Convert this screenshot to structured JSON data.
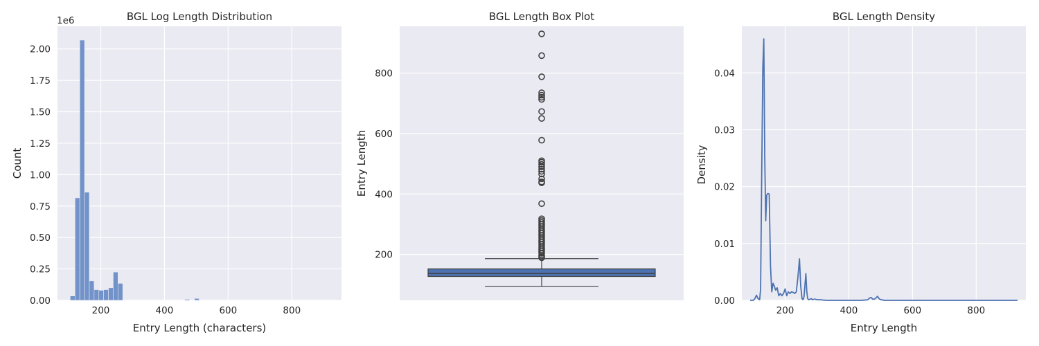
{
  "colors": {
    "background": "#eaeaf2",
    "bar": "#7293c9",
    "box": "#4c72b0",
    "line": "#4c72b0",
    "edge": "#3f3f3f",
    "grid": "#ffffff"
  },
  "chart_data": [
    {
      "type": "bar",
      "title": "BGL Log Length Distribution",
      "xlabel": "Entry Length (characters)",
      "ylabel": "Count",
      "y_offset_label": "1e6",
      "xlim": [
        64,
        956
      ],
      "ylim": [
        0,
        2.18
      ],
      "xticks": [
        200,
        400,
        600,
        800
      ],
      "xtick_labels": [
        "200",
        "400",
        "600",
        "800"
      ],
      "yticks": [
        0,
        0.25,
        0.5,
        0.75,
        1.0,
        1.25,
        1.5,
        1.75,
        2.0
      ],
      "ytick_labels": [
        "0.00",
        "0.25",
        "0.50",
        "0.75",
        "1.00",
        "1.25",
        "1.50",
        "1.75",
        "2.00"
      ],
      "bins": [
        {
          "x0": 104,
          "x1": 119,
          "count": 0.035
        },
        {
          "x0": 119,
          "x1": 134,
          "count": 0.815
        },
        {
          "x0": 134,
          "x1": 149,
          "count": 2.07
        },
        {
          "x0": 149,
          "x1": 164,
          "count": 0.86
        },
        {
          "x0": 164,
          "x1": 179,
          "count": 0.155
        },
        {
          "x0": 179,
          "x1": 194,
          "count": 0.085
        },
        {
          "x0": 194,
          "x1": 209,
          "count": 0.08
        },
        {
          "x0": 209,
          "x1": 224,
          "count": 0.085
        },
        {
          "x0": 224,
          "x1": 239,
          "count": 0.1
        },
        {
          "x0": 239,
          "x1": 254,
          "count": 0.225
        },
        {
          "x0": 254,
          "x1": 269,
          "count": 0.135
        },
        {
          "x0": 464,
          "x1": 479,
          "count": 0.008
        },
        {
          "x0": 494,
          "x1": 509,
          "count": 0.015
        }
      ]
    },
    {
      "type": "box",
      "title": "BGL Length Box Plot",
      "xlabel": "",
      "ylabel": "Entry Length",
      "ylim": [
        48,
        955
      ],
      "yticks": [
        200,
        400,
        600,
        800
      ],
      "ytick_labels": [
        "200",
        "400",
        "600",
        "800"
      ],
      "box": {
        "q1": 127,
        "median": 137,
        "q3": 152,
        "whisker_low": 94,
        "whisker_high": 186
      },
      "outliers": [
        930,
        858,
        788,
        735,
        727,
        720,
        713,
        673,
        650,
        578,
        510,
        505,
        498,
        490,
        482,
        475,
        466,
        450,
        440,
        437,
        368,
        318,
        312,
        306,
        300,
        294,
        288,
        282,
        276,
        270,
        264,
        258,
        252,
        246,
        240,
        234,
        228,
        222,
        216,
        210,
        204,
        198,
        193,
        189
      ]
    },
    {
      "type": "line",
      "title": "BGL Length Density",
      "xlabel": "Entry Length",
      "ylabel": "Density",
      "xlim": [
        64,
        956
      ],
      "ylim": [
        0,
        0.0482
      ],
      "xticks": [
        200,
        400,
        600,
        800
      ],
      "xtick_labels": [
        "200",
        "400",
        "600",
        "800"
      ],
      "yticks": [
        0,
        0.01,
        0.02,
        0.03,
        0.04
      ],
      "ytick_labels": [
        "0.00",
        "0.01",
        "0.02",
        "0.03",
        "0.04"
      ],
      "series": [
        {
          "x": [
            90,
            100,
            105,
            110,
            115,
            120,
            123,
            126,
            130,
            133,
            136,
            139,
            142,
            146,
            150,
            154,
            158,
            162,
            166,
            170,
            175,
            180,
            185,
            190,
            195,
            200,
            205,
            210,
            215,
            220,
            225,
            230,
            235,
            240,
            245,
            249,
            253,
            256,
            259,
            262,
            265,
            268,
            271,
            274,
            278,
            282,
            286,
            290,
            295,
            300,
            310,
            320,
            330,
            400,
            440,
            460,
            465,
            470,
            475,
            480,
            485,
            490,
            495,
            500,
            505,
            510,
            520,
            600,
            700,
            800,
            900,
            930
          ],
          "y": [
            0,
            0,
            0.0003,
            0.0009,
            0.0003,
            0.0001,
            0.002,
            0.02,
            0.041,
            0.046,
            0.025,
            0.014,
            0.0185,
            0.0188,
            0.0187,
            0.006,
            0.0015,
            0.003,
            0.0025,
            0.0018,
            0.0022,
            0.0008,
            0.0012,
            0.0008,
            0.0012,
            0.002,
            0.0008,
            0.0015,
            0.0012,
            0.0015,
            0.0014,
            0.0012,
            0.0015,
            0.004,
            0.0073,
            0.0025,
            0.0003,
            0.0001,
            0.0005,
            0.0025,
            0.0047,
            0.0015,
            0.0003,
            0.0001,
            0.0002,
            0.0003,
            0.0001,
            0.0002,
            0.0002,
            0.0001,
            0.0001,
            5e-05,
            0,
            0,
            0,
            0.0001,
            0.0004,
            0.0005,
            0.0002,
            0.0002,
            0.0004,
            0.0007,
            0.0003,
            0.0001,
            0.0001,
            0,
            0,
            0,
            0,
            0,
            0,
            0
          ]
        }
      ]
    }
  ]
}
